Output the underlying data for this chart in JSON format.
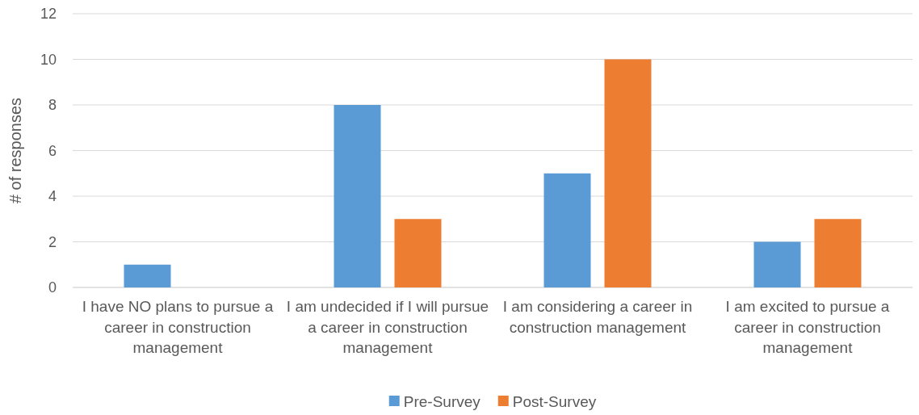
{
  "chart_data": {
    "type": "bar",
    "ylabel": "# of responses",
    "categories": [
      "I have NO plans to pursue a career in construction management",
      "I am undecided if I will pursue a career in construction management",
      "I am considering a career in construction management",
      "I am excited to pursue a career in construction management"
    ],
    "series": [
      {
        "name": "Pre-Survey",
        "color": "#5b9bd5",
        "values": [
          1,
          8,
          5,
          2
        ]
      },
      {
        "name": "Post-Survey",
        "color": "#ed7d31",
        "values": [
          0,
          3,
          10,
          3
        ]
      }
    ],
    "ylim": [
      0,
      12
    ],
    "yticks": [
      0,
      2,
      4,
      6,
      8,
      10,
      12
    ],
    "grid": "y",
    "legend": "bottom"
  }
}
